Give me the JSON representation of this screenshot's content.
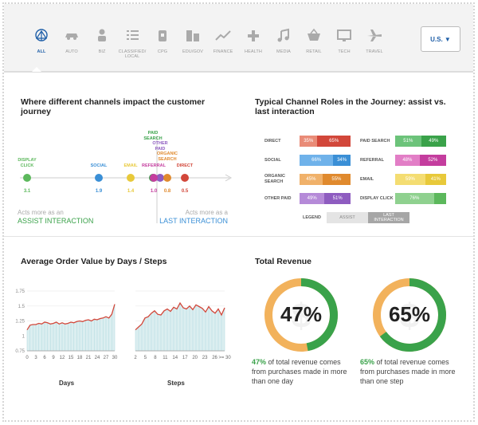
{
  "country_selector": {
    "label": "U.S. ▼"
  },
  "categories": [
    {
      "label": "ALL",
      "icon": "network-icon",
      "active": true
    },
    {
      "label": "AUTO",
      "icon": "car-icon"
    },
    {
      "label": "BIZ",
      "icon": "person-icon"
    },
    {
      "label": "CLASSIFIED/ LOCAL",
      "icon": "list-icon"
    },
    {
      "label": "CPG",
      "icon": "package-icon"
    },
    {
      "label": "EDU/GOV",
      "icon": "building-icon"
    },
    {
      "label": "FINANCE",
      "icon": "trend-icon"
    },
    {
      "label": "HEALTH",
      "icon": "cross-icon"
    },
    {
      "label": "MEDIA",
      "icon": "music-icon"
    },
    {
      "label": "RETAIL",
      "icon": "basket-icon"
    },
    {
      "label": "TECH",
      "icon": "monitor-icon"
    },
    {
      "label": "TRAVEL",
      "icon": "plane-icon"
    }
  ],
  "channels_impact": {
    "title": "Where different channels impact the customer journey",
    "assist_text": "Acts more as an",
    "assist_strong": "ASSIST INTERACTION",
    "last_text": "Acts more as a",
    "last_strong": "LAST INTERACTION",
    "points": [
      {
        "label": "DISPLAY CLICK",
        "value": "3.1",
        "color": "#5cb85c"
      },
      {
        "label": "SOCIAL",
        "value": "1.9",
        "color": "#3a8fd6"
      },
      {
        "label": "EMAIL",
        "value": "1.4",
        "color": "#e8c93a"
      },
      {
        "label": "PAID SEARCH",
        "value": "",
        "color": "#3aa24a"
      },
      {
        "label": "OTHER PAID",
        "value": "",
        "color": "#8e5cc0"
      },
      {
        "label": "REFERRAL",
        "value": "1.0",
        "color": "#c43d9e"
      },
      {
        "label": "ORGANIC SEARCH",
        "value": "0.8",
        "color": "#e08a2e"
      },
      {
        "label": "DIRECT",
        "value": "0.5",
        "color": "#d2473a"
      }
    ]
  },
  "channel_roles": {
    "title": "Typical Channel Roles in the Journey: assist vs. last interaction",
    "rows": [
      {
        "name": "DIRECT",
        "assist": "35%",
        "last": "65%",
        "a": 35,
        "c1": "#e98b77",
        "c2": "#d2473a"
      },
      {
        "name": "SOCIAL",
        "assist": "66%",
        "last": "34%",
        "a": 66,
        "c1": "#6fb2ea",
        "c2": "#3a8fd6"
      },
      {
        "name": "ORGANIC SEARCH",
        "assist": "45%",
        "last": "55%",
        "a": 45,
        "c1": "#f0b16a",
        "c2": "#e08a2e"
      },
      {
        "name": "OTHER PAID",
        "assist": "49%",
        "last": "51%",
        "a": 49,
        "c1": "#b58ad8",
        "c2": "#8e5cc0"
      },
      {
        "name": "PAID SEARCH",
        "assist": "51%",
        "last": "49%",
        "a": 51,
        "c1": "#6cc37a",
        "c2": "#3aa24a"
      },
      {
        "name": "REFERRAL",
        "assist": "48%",
        "last": "52%",
        "a": 48,
        "c1": "#e27ec6",
        "c2": "#c43d9e"
      },
      {
        "name": "EMAIL",
        "assist": "59%",
        "last": "41%",
        "a": 59,
        "c1": "#f4dd72",
        "c2": "#e8c93a"
      },
      {
        "name": "DISPLAY CLICK",
        "assist": "76%",
        "last": "",
        "a": 76,
        "c1": "#8fd18f",
        "c2": "#5cb85c"
      }
    ],
    "legend_title": "LEGEND",
    "legend_assist": "ASSIST",
    "legend_last": "LAST INTERACTION"
  },
  "aov": {
    "title": "Average Order Value by Days / Steps",
    "y_ticks": [
      "1.75",
      "1.5",
      "1.25",
      "1",
      "0.75"
    ],
    "days_label": "Days",
    "steps_label": "Steps",
    "days_ticks": [
      "0",
      "3",
      "6",
      "9",
      "12",
      "15",
      "18",
      "21",
      "24",
      "27",
      "30"
    ],
    "steps_ticks": [
      "2",
      "5",
      "8",
      "11",
      "14",
      "17",
      "20",
      "23",
      "26",
      ">= 30"
    ]
  },
  "chart_data": [
    {
      "type": "area",
      "xlabel": "Days",
      "ylim": [
        0.75,
        1.75
      ],
      "x": [
        0,
        1,
        2,
        3,
        4,
        5,
        6,
        7,
        8,
        9,
        10,
        11,
        12,
        13,
        14,
        15,
        16,
        17,
        18,
        19,
        20,
        21,
        22,
        23,
        24,
        25,
        26,
        27,
        28,
        29,
        30
      ],
      "values": [
        1.1,
        1.18,
        1.19,
        1.19,
        1.21,
        1.2,
        1.23,
        1.22,
        1.2,
        1.21,
        1.23,
        1.2,
        1.22,
        1.2,
        1.21,
        1.23,
        1.22,
        1.24,
        1.25,
        1.24,
        1.26,
        1.27,
        1.25,
        1.28,
        1.27,
        1.29,
        1.3,
        1.32,
        1.3,
        1.36,
        1.53
      ]
    },
    {
      "type": "area",
      "xlabel": "Steps",
      "ylim": [
        0.75,
        1.75
      ],
      "x": [
        "2",
        "3",
        "4",
        "5",
        "6",
        "7",
        "8",
        "9",
        "10",
        "11",
        "12",
        "13",
        "14",
        "15",
        "16",
        "17",
        "18",
        "19",
        "20",
        "21",
        "22",
        "23",
        "24",
        "25",
        "26",
        "27",
        "28",
        "29",
        ">= 30"
      ],
      "values": [
        1.1,
        1.15,
        1.2,
        1.3,
        1.32,
        1.38,
        1.42,
        1.36,
        1.35,
        1.42,
        1.45,
        1.41,
        1.48,
        1.45,
        1.55,
        1.47,
        1.45,
        1.5,
        1.44,
        1.52,
        1.49,
        1.46,
        1.4,
        1.49,
        1.42,
        1.38,
        1.45,
        1.35,
        1.47
      ]
    },
    {
      "type": "pie",
      "categories": [
        "more than one day",
        "other"
      ],
      "values": [
        47,
        53
      ]
    },
    {
      "type": "pie",
      "categories": [
        "more than one step",
        "other"
      ],
      "values": [
        65,
        35
      ]
    }
  ],
  "revenue": {
    "title": "Total Revenue",
    "day_pct": "47%",
    "day_text": "of total revenue comes from purchases made in more than one day",
    "step_pct": "65%",
    "step_text": "of total revenue comes from purchases made in more than one step",
    "green": "#3aa24a",
    "orange": "#f2b25c"
  }
}
